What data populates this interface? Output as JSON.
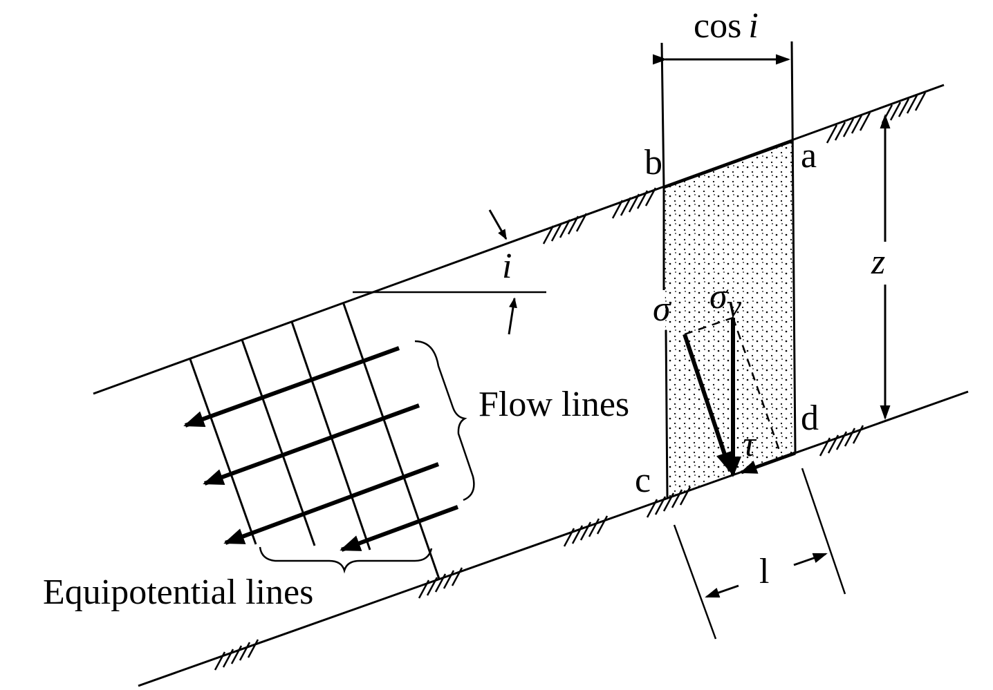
{
  "labels": {
    "width_label": "cos i",
    "width_cos": "cos",
    "width_i": "i",
    "point_a": "a",
    "point_b": "b",
    "point_c": "c",
    "point_d": "d",
    "angle_i": "i",
    "depth_z": "z",
    "sigma": "σ",
    "sigma_v": "σ",
    "sigma_v_sub": "v",
    "tau": "τ",
    "length_l": "l",
    "flow_lines": "Flow lines",
    "equipotential_lines": "Equipotential lines"
  },
  "colors": {
    "ink": "#000000",
    "background": "#ffffff"
  },
  "icons": {
    "ground_hatch": "ground-hatch-icon",
    "arrowhead": "arrowhead-icon"
  }
}
